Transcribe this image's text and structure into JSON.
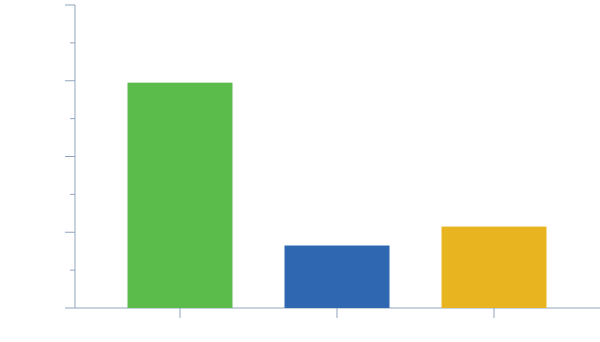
{
  "chart_data": {
    "type": "bar",
    "categories": [
      null,
      null,
      null
    ],
    "values": [
      5.95,
      1.65,
      2.15
    ],
    "colors": [
      "#5bbb4b",
      "#2f68b0",
      "#e8b520"
    ],
    "ylim": [
      0,
      8
    ],
    "yticks": [
      0,
      2,
      4,
      6,
      8
    ],
    "yminorticks": [
      1,
      3,
      5,
      7
    ]
  }
}
